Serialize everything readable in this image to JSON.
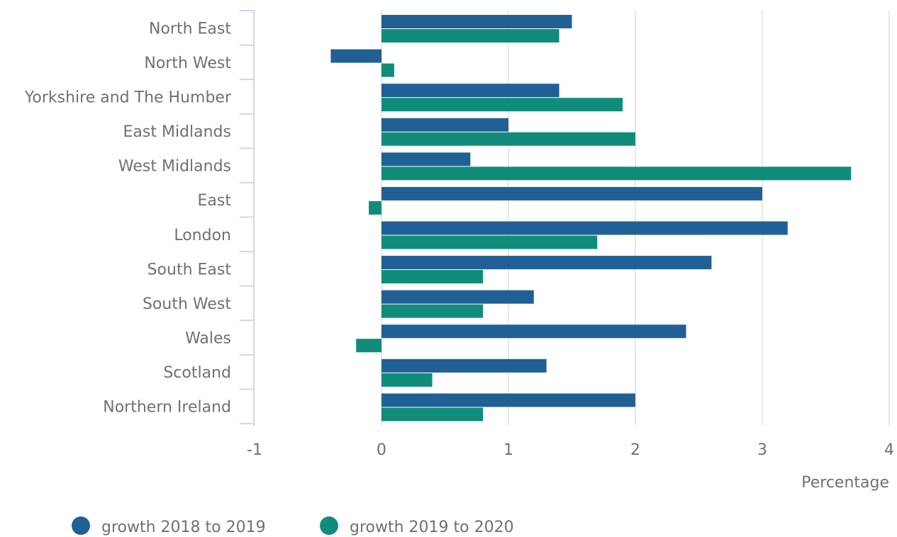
{
  "chart_data": {
    "type": "bar",
    "orientation": "horizontal",
    "categories": [
      "North East",
      "North West",
      "Yorkshire and The Humber",
      "East Midlands",
      "West Midlands",
      "East",
      "London",
      "South East",
      "South West",
      "Wales",
      "Scotland",
      "Northern Ireland"
    ],
    "series": [
      {
        "name": "growth 2018 to 2019",
        "color": "#206095",
        "values": [
          1.5,
          -0.4,
          1.4,
          1.0,
          0.7,
          3.0,
          3.2,
          2.6,
          1.2,
          2.4,
          1.3,
          2.0
        ]
      },
      {
        "name": "growth 2019 to 2020",
        "color": "#118c7b",
        "values": [
          1.4,
          0.1,
          1.9,
          2.0,
          3.7,
          -0.1,
          1.7,
          0.8,
          0.8,
          -0.2,
          0.4,
          0.8
        ]
      }
    ],
    "xlim": [
      -1,
      4
    ],
    "xticks": [
      -1,
      0,
      1,
      2,
      3,
      4
    ],
    "x_label": "Percentage",
    "grid": true,
    "legend": "bottom"
  }
}
